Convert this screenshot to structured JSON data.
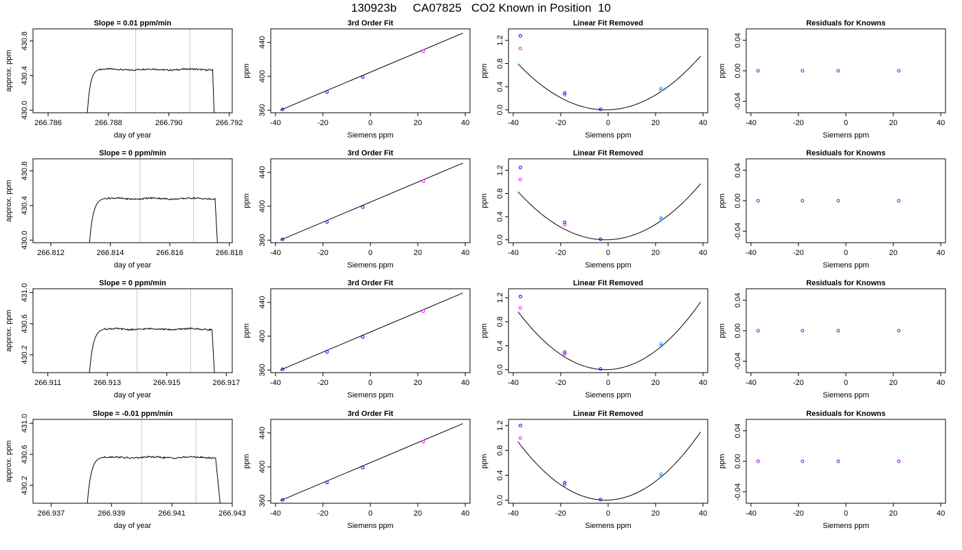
{
  "suptitle": "130923b     CA07825   CO2 Known in Position  10",
  "chart_data": [
    {
      "type": "line",
      "title": "Slope =  0.01  ppm/min",
      "xlabel": "day of year",
      "ylabel": "approx. ppm",
      "xlim": [
        266.7855,
        266.7921
      ],
      "ylim": [
        429.97,
        430.94
      ],
      "xticks": [
        266.786,
        266.788,
        266.79,
        266.792
      ],
      "yticks": [
        430.0,
        430.4,
        430.8
      ],
      "vlines": [
        266.7889,
        266.7907
      ],
      "trace": {
        "t0": 266.7873,
        "t_rise_end": 266.7877,
        "t_drop": 266.79145,
        "t_end": 266.7915,
        "start": 429.97,
        "plateau": 430.47,
        "end": 429.97
      }
    },
    {
      "type": "scatter",
      "title": "3rd Order Fit",
      "xlabel": "Siemens ppm",
      "ylabel": "ppm",
      "xlim": [
        -42,
        42
      ],
      "ylim": [
        357,
        456
      ],
      "xticks": [
        -40,
        -20,
        0,
        20,
        40
      ],
      "yticks": [
        360,
        400,
        440
      ],
      "fit_line": [
        [
          -38,
          360
        ],
        [
          39,
          451
        ]
      ],
      "points": [
        [
          -37,
          361
        ],
        [
          -18.3,
          381.5
        ],
        [
          -3.2,
          399
        ],
        [
          22.3,
          429.5
        ]
      ]
    },
    {
      "type": "scatter",
      "title": "Linear Fit Removed",
      "xlabel": "Siemens ppm",
      "ylabel": "ppm",
      "xlim": [
        -42,
        42
      ],
      "ylim": [
        -0.05,
        1.4
      ],
      "xticks": [
        -40,
        -20,
        0,
        20,
        40
      ],
      "yticks": [
        0.0,
        0.4,
        0.8,
        1.2
      ],
      "curve_vertex": [
        -1,
        0
      ],
      "curve_end": [
        39,
        0.93
      ],
      "points": [
        [
          -37,
          1.28
        ],
        [
          -37,
          1.06
        ],
        [
          -18.3,
          0.29
        ],
        [
          -18.3,
          0.26
        ],
        [
          -3.2,
          0.01
        ],
        [
          22.3,
          0.37
        ],
        [
          22.3,
          0.34
        ]
      ]
    },
    {
      "type": "scatter",
      "title": "Residuals for Knowns",
      "xlabel": "Siemens ppm",
      "ylabel": "ppm",
      "xlim": [
        -42,
        42
      ],
      "ylim": [
        -0.055,
        0.055
      ],
      "xticks": [
        -40,
        -20,
        0,
        20,
        40
      ],
      "yticks": [
        -0.04,
        0.0,
        0.04
      ],
      "points": [
        [
          -37,
          0
        ],
        [
          -18.3,
          0
        ],
        [
          -3.2,
          0
        ],
        [
          22.3,
          0
        ]
      ]
    },
    {
      "type": "line",
      "title": "Slope =  0  ppm/min",
      "xlabel": "day of year",
      "ylabel": "approx. ppm",
      "xlim": [
        266.8114,
        266.8181
      ],
      "ylim": [
        429.97,
        430.94
      ],
      "xticks": [
        266.812,
        266.814,
        266.816,
        266.818
      ],
      "yticks": [
        430.0,
        430.4,
        430.8
      ],
      "vlines": [
        266.815,
        266.8168
      ],
      "trace": {
        "t0": 266.8133,
        "t_rise_end": 266.8138,
        "t_drop": 266.81752,
        "t_end": 266.8176,
        "start": 429.97,
        "plateau": 430.48,
        "end": 429.97
      }
    },
    {
      "type": "scatter",
      "title": "3rd Order Fit",
      "xlabel": "Siemens ppm",
      "ylabel": "ppm",
      "xlim": [
        -42,
        42
      ],
      "ylim": [
        357,
        456
      ],
      "xticks": [
        -40,
        -20,
        0,
        20,
        40
      ],
      "yticks": [
        360,
        400,
        440
      ],
      "fit_line": [
        [
          -38,
          360
        ],
        [
          39,
          451
        ]
      ],
      "points": [
        [
          -37,
          361
        ],
        [
          -18.3,
          381.5
        ],
        [
          -3.2,
          399
        ],
        [
          22.3,
          429.5
        ]
      ]
    },
    {
      "type": "scatter",
      "title": "Linear Fit Removed",
      "xlabel": "Siemens ppm",
      "ylabel": "ppm",
      "xlim": [
        -42,
        42
      ],
      "ylim": [
        -0.05,
        1.4
      ],
      "xticks": [
        -40,
        -20,
        0,
        20,
        40
      ],
      "yticks": [
        0.0,
        0.4,
        0.8,
        1.2
      ],
      "curve_vertex": [
        -1,
        0
      ],
      "curve_end": [
        39,
        0.97
      ],
      "points": [
        [
          -37,
          1.25
        ],
        [
          -37,
          1.04
        ],
        [
          -18.3,
          0.3
        ],
        [
          -18.3,
          0.26
        ],
        [
          -3.2,
          0.01
        ],
        [
          22.3,
          0.38
        ],
        [
          22.3,
          0.35
        ]
      ]
    },
    {
      "type": "scatter",
      "title": "Residuals for Knowns",
      "xlabel": "Siemens ppm",
      "ylabel": "ppm",
      "xlim": [
        -42,
        42
      ],
      "ylim": [
        -0.055,
        0.055
      ],
      "xticks": [
        -40,
        -20,
        0,
        20,
        40
      ],
      "yticks": [
        -0.04,
        0.0,
        0.04
      ],
      "points": [
        [
          -37,
          0
        ],
        [
          -18.3,
          0
        ],
        [
          -3.2,
          0
        ],
        [
          22.3,
          0
        ]
      ]
    },
    {
      "type": "line",
      "title": "Slope =  0  ppm/min",
      "xlabel": "day of year",
      "ylabel": "approx. ppm",
      "xlim": [
        266.9105,
        266.9172
      ],
      "ylim": [
        429.97,
        431.05
      ],
      "xticks": [
        266.911,
        266.913,
        266.915,
        266.917
      ],
      "yticks": [
        430.2,
        430.6,
        431.0
      ],
      "vlines": [
        266.914,
        266.9158
      ],
      "trace": {
        "t0": 266.9124,
        "t_rise_end": 266.9129,
        "t_drop": 266.91652,
        "t_end": 266.9166,
        "start": 429.97,
        "plateau": 430.53,
        "end": 429.97
      }
    },
    {
      "type": "scatter",
      "title": "3rd Order Fit",
      "xlabel": "Siemens ppm",
      "ylabel": "ppm",
      "xlim": [
        -42,
        42
      ],
      "ylim": [
        357,
        456
      ],
      "xticks": [
        -40,
        -20,
        0,
        20,
        40
      ],
      "yticks": [
        360,
        400,
        440
      ],
      "fit_line": [
        [
          -38,
          360
        ],
        [
          39,
          451
        ]
      ],
      "points": [
        [
          -37,
          361
        ],
        [
          -18.3,
          381.5
        ],
        [
          -3.2,
          399
        ],
        [
          22.3,
          429.5
        ]
      ]
    },
    {
      "type": "scatter",
      "title": "Linear Fit Removed",
      "xlabel": "Siemens ppm",
      "ylabel": "ppm",
      "xlim": [
        -42,
        42
      ],
      "ylim": [
        -0.05,
        1.35
      ],
      "xticks": [
        -40,
        -20,
        0,
        20,
        40
      ],
      "yticks": [
        0.0,
        0.4,
        0.8,
        1.2
      ],
      "curve_vertex": [
        -1,
        0
      ],
      "curve_end": [
        39,
        1.13
      ],
      "points": [
        [
          -37,
          1.22
        ],
        [
          -37,
          1.03
        ],
        [
          -18.3,
          0.29
        ],
        [
          -18.3,
          0.26
        ],
        [
          -3.2,
          0.01
        ],
        [
          22.3,
          0.43
        ],
        [
          22.3,
          0.4
        ]
      ]
    },
    {
      "type": "scatter",
      "title": "Residuals for Knowns",
      "xlabel": "Siemens ppm",
      "ylabel": "ppm",
      "xlim": [
        -42,
        42
      ],
      "ylim": [
        -0.055,
        0.055
      ],
      "xticks": [
        -40,
        -20,
        0,
        20,
        40
      ],
      "yticks": [
        -0.04,
        0.0,
        0.04
      ],
      "points": [
        [
          -37,
          0
        ],
        [
          -18.3,
          0
        ],
        [
          -3.2,
          0
        ],
        [
          22.3,
          0
        ]
      ]
    },
    {
      "type": "line",
      "title": "Slope =  -0.01  ppm/min",
      "xlabel": "day of year",
      "ylabel": "approx. ppm",
      "xlim": [
        266.9364,
        266.943
      ],
      "ylim": [
        429.97,
        431.05
      ],
      "xticks": [
        266.937,
        266.939,
        266.941,
        266.943
      ],
      "yticks": [
        430.2,
        430.6,
        431.0
      ],
      "vlines": [
        266.94,
        266.9418
      ],
      "trace": {
        "t0": 266.9382,
        "t_rise_end": 266.9387,
        "t_drop": 266.94245,
        "t_end": 266.9426,
        "start": 429.97,
        "plateau": 430.56,
        "end": 429.97
      }
    },
    {
      "type": "scatter",
      "title": "3rd Order Fit",
      "xlabel": "Siemens ppm",
      "ylabel": "ppm",
      "xlim": [
        -42,
        42
      ],
      "ylim": [
        357,
        456
      ],
      "xticks": [
        -40,
        -20,
        0,
        20,
        40
      ],
      "yticks": [
        360,
        400,
        440
      ],
      "fit_line": [
        [
          -38,
          360
        ],
        [
          39,
          451
        ]
      ],
      "points": [
        [
          -37,
          361
        ],
        [
          -18.3,
          381.5
        ],
        [
          -3.2,
          399
        ],
        [
          22.3,
          429.5
        ]
      ]
    },
    {
      "type": "scatter",
      "title": "Linear Fit Removed",
      "xlabel": "Siemens ppm",
      "ylabel": "ppm",
      "xlim": [
        -42,
        42
      ],
      "ylim": [
        -0.05,
        1.3
      ],
      "xticks": [
        -40,
        -20,
        0,
        20,
        40
      ],
      "yticks": [
        0.0,
        0.4,
        0.8,
        1.2
      ],
      "curve_vertex": [
        -1,
        0
      ],
      "curve_end": [
        39,
        1.1
      ],
      "points": [
        [
          -37,
          1.2
        ],
        [
          -37,
          1.0
        ],
        [
          -18.3,
          0.28
        ],
        [
          -18.3,
          0.25
        ],
        [
          -3.2,
          0.01
        ],
        [
          22.3,
          0.42
        ],
        [
          22.3,
          0.39
        ]
      ]
    },
    {
      "type": "scatter",
      "title": "Residuals for Knowns",
      "xlabel": "Siemens ppm",
      "ylabel": "ppm",
      "xlim": [
        -42,
        42
      ],
      "ylim": [
        -0.055,
        0.055
      ],
      "xticks": [
        -40,
        -20,
        0,
        20,
        40
      ],
      "yticks": [
        -0.04,
        0.0,
        0.04
      ],
      "points": [
        [
          -37,
          0
        ],
        [
          -18.3,
          0
        ],
        [
          -3.2,
          0
        ],
        [
          22.3,
          0
        ]
      ]
    }
  ],
  "colors": {
    "axis": "#000000",
    "vline": "#c8c8c8",
    "point_primary": "#0000ff",
    "point_secondary": "#ff00ff",
    "point_tertiary": "#3399ff",
    "point_residual": "#8800cc",
    "trace_marker": "#ff0000"
  }
}
